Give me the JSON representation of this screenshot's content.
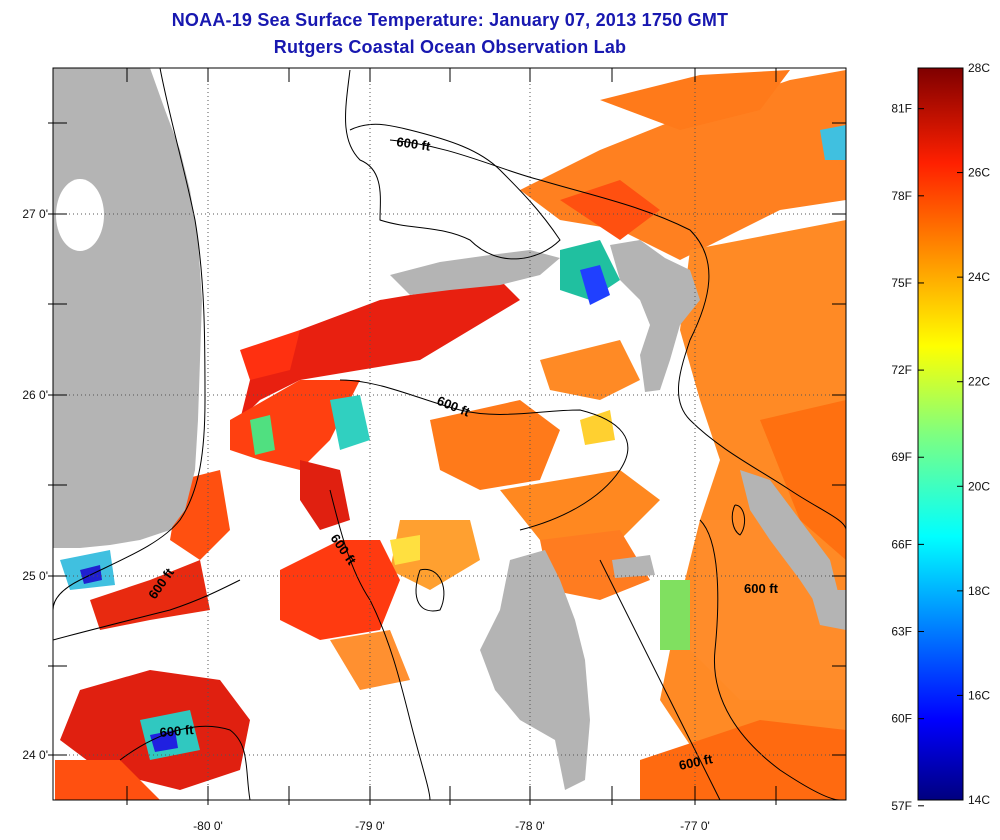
{
  "title": "NOAA-19 Sea Surface Temperature:  January 07, 2013 1750 GMT",
  "subtitle": "Rutgers Coastal Ocean Observation Lab",
  "axes": {
    "lon_labels": [
      "-80 0'",
      "-79 0'",
      "-78 0'",
      "-77 0'"
    ],
    "lat_labels": [
      "27 0'",
      "26 0'",
      "25 0'",
      "24 0'"
    ]
  },
  "contour_labels": [
    "600 ft",
    "600 ft",
    "600 ft",
    "600 ft",
    "600 ft",
    "600 ft"
  ],
  "colorbar": {
    "fahrenheit": [
      "81F",
      "78F",
      "75F",
      "72F",
      "69F",
      "66F",
      "63F",
      "60F",
      "57F"
    ],
    "celsius": [
      "28C",
      "26C",
      "24C",
      "22C",
      "20C",
      "18C",
      "16C",
      "14C"
    ]
  },
  "colors": {
    "land": "#b4b4b4",
    "title": "#1818b0"
  }
}
